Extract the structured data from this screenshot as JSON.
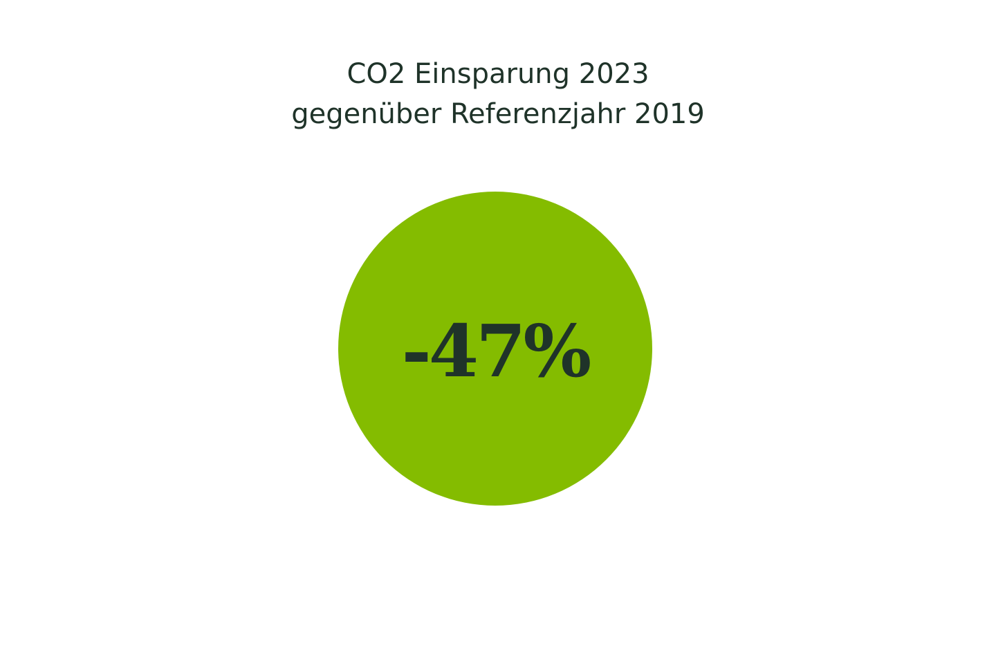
{
  "title": {
    "line1": "CO2 Einsparung 2023",
    "line2": "gegenüber Referenzjahr 2019"
  },
  "kpi": {
    "value": "-47%"
  },
  "colors": {
    "circle": "#84bc00",
    "text": "#1f3329",
    "background": "#ffffff"
  },
  "chart_data": {
    "type": "pie",
    "title": "CO2 Einsparung 2023 gegenüber Referenzjahr 2019",
    "categories": [
      "CO2 Einsparung 2023 vs. 2019"
    ],
    "values": [
      -47
    ],
    "unit": "%",
    "annotations": [
      "-47%"
    ],
    "legend": null,
    "grid": false
  }
}
